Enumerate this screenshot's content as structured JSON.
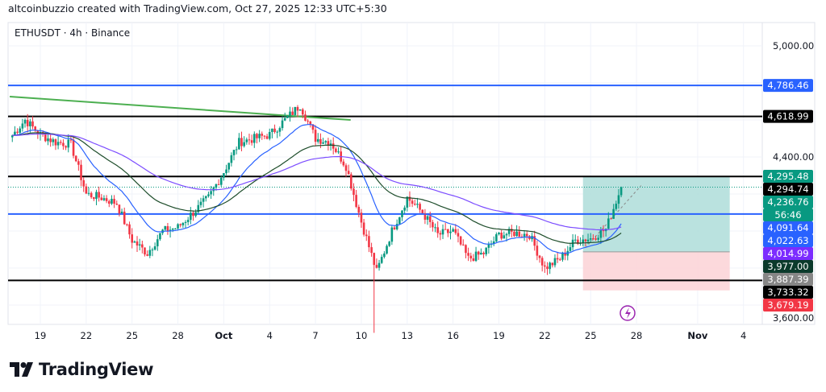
{
  "header": {
    "attribution": "altcoinbuzzio created with TradingView.com, Oct 27, 2025 12:33 UTC+5:30"
  },
  "symbol_info": "ETHUSDT · 4h · Binance",
  "logo": {
    "text": "TradingView"
  },
  "chart_data": {
    "type": "candlestick",
    "symbol": "ETHUSDT",
    "interval": "4h",
    "exchange": "Binance",
    "ylim": [
      3450,
      5100
    ],
    "grid": true,
    "y_ticks": [
      "5,000.00",
      "4,400.00",
      "3,600.00"
    ],
    "y_tick_values": [
      5000,
      4400,
      3600
    ],
    "x_ticks": [
      {
        "label": "19",
        "day": 0
      },
      {
        "label": "22",
        "day": 3
      },
      {
        "label": "25",
        "day": 6
      },
      {
        "label": "28",
        "day": 9
      },
      {
        "label": "Oct",
        "day": 12
      },
      {
        "label": "4",
        "day": 15
      },
      {
        "label": "7",
        "day": 18
      },
      {
        "label": "10",
        "day": 21
      },
      {
        "label": "13",
        "day": 24
      },
      {
        "label": "16",
        "day": 27
      },
      {
        "label": "19",
        "day": 30
      },
      {
        "label": "22",
        "day": 33
      },
      {
        "label": "25",
        "day": 36
      },
      {
        "label": "28",
        "day": 39
      },
      {
        "label": "Nov",
        "day": 43
      },
      {
        "label": "4",
        "day": 46
      }
    ],
    "x_day_origin": "Sep 19",
    "daily_closes_from_sep17": [
      4500,
      4600,
      4520,
      4480,
      4470,
      4200,
      4180,
      4150,
      3950,
      3880,
      4000,
      4020,
      4100,
      4180,
      4320,
      4480,
      4500,
      4520,
      4600,
      4680,
      4500,
      4480,
      4350,
      4050,
      3780,
      4000,
      4180,
      4100,
      3980,
      4000,
      3850,
      3880,
      3980,
      3990,
      3980,
      3800,
      3850,
      3950,
      3960,
      4010,
      4236.76
    ],
    "moving_averages": [
      {
        "color": "#2962ff",
        "period": 20
      },
      {
        "color": "#1e4d2b",
        "period": 50
      },
      {
        "color": "#7c4dff",
        "period": 100
      }
    ],
    "horizontal_lines": [
      {
        "price": 4786.46,
        "color": "#2962ff"
      },
      {
        "price": 4618.99,
        "color": "#000000"
      },
      {
        "price": 4294.74,
        "color": "#000000"
      },
      {
        "price": 4091.64,
        "color": "#2962ff"
      },
      {
        "price": 3733.32,
        "color": "#000000"
      }
    ],
    "trendline": {
      "color": "#4caf50",
      "from": {
        "day": -2,
        "price": 4726
      },
      "to": {
        "day": 20.3,
        "price": 4600
      }
    },
    "long_position": {
      "start_day": 35.5,
      "end_day": 45.1,
      "target": 4295.48,
      "entry": 3887.39,
      "stop": 3679.19,
      "profit_color": "#b2dfdb",
      "loss_color": "#fcd5d8"
    },
    "current_price": 4236.76,
    "countdown": "56:46",
    "price_labels": [
      {
        "text": "4,786.46",
        "price": 4786.46,
        "bg": "#2962ff"
      },
      {
        "text": "4,618.99",
        "price": 4618.99,
        "bg": "#000000"
      },
      {
        "text": "4,295.48",
        "price": 4295.48,
        "bg": "#089981"
      },
      {
        "text": "4,294.74",
        "price": 4294.74,
        "bg": "#000000"
      },
      {
        "text": "4,236.76",
        "price": 4236.76,
        "bg": "#089981"
      },
      {
        "text": "56:46",
        "price": 4236.76,
        "bg": "#089981"
      },
      {
        "text": "4,091.64",
        "price": 4091.64,
        "bg": "#2962ff"
      },
      {
        "text": "4,022.63",
        "price": 4022.63,
        "bg": "#2962ff"
      },
      {
        "text": "4,014.99",
        "price": 4014.99,
        "bg": "#7c2cff"
      },
      {
        "text": "3,977.00",
        "price": 3977.0,
        "bg": "#0b3a2b"
      },
      {
        "text": "3,887.39",
        "price": 3887.39,
        "bg": "#868686"
      },
      {
        "text": "3,733.32",
        "price": 3733.32,
        "bg": "#000000"
      },
      {
        "text": "3,679.19",
        "price": 3679.19,
        "bg": "#f23645"
      }
    ],
    "up_color": "#089981",
    "down_color": "#f23645"
  }
}
